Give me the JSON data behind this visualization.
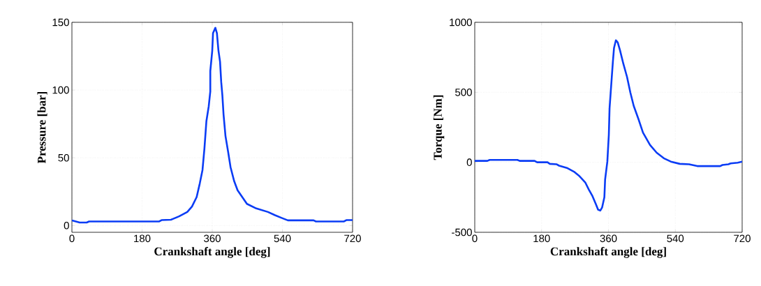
{
  "chart_data": [
    {
      "type": "line",
      "xlabel": "Crankshaft angle [deg]",
      "ylabel": "Pressure [bar]",
      "xlim": [
        0,
        720
      ],
      "ylim": [
        -5,
        150
      ],
      "xticks": [
        0,
        180,
        360,
        540,
        720
      ],
      "yticks": [
        0,
        50,
        100,
        150
      ],
      "grid": true,
      "line_style": "solid",
      "series": [
        {
          "color": "#0a3cf5",
          "x": [
            0,
            20,
            38,
            44,
            224,
            230,
            254,
            260,
            275,
            296,
            308,
            320,
            328,
            335,
            340,
            345,
            351,
            355,
            355,
            360,
            362,
            368,
            372,
            376,
            380,
            383,
            386,
            389,
            394,
            401,
            407,
            416,
            425,
            437,
            449,
            473,
            503,
            521,
            539,
            554,
            620,
            626,
            698,
            704,
            720
          ],
          "values": [
            3.8,
            2.2,
            2.2,
            3,
            3,
            4,
            4.3,
            5,
            6.8,
            10,
            14,
            21,
            31,
            41,
            57,
            77,
            88,
            99,
            114,
            129,
            142,
            146,
            142,
            129,
            121,
            106,
            96,
            82,
            66,
            54,
            43,
            33,
            26,
            21,
            16,
            12.6,
            10,
            7.6,
            5.5,
            3.8,
            3.8,
            3,
            3,
            4,
            4
          ]
        }
      ]
    },
    {
      "type": "line",
      "xlabel": "Crankshaft angle [deg]",
      "ylabel": "Torque [Nm]",
      "xlim": [
        0,
        720
      ],
      "ylim": [
        -500,
        1000
      ],
      "xticks": [
        0,
        180,
        360,
        540,
        720
      ],
      "yticks": [
        -500,
        0,
        500,
        1000
      ],
      "grid": true,
      "line_style": "solid",
      "series": [
        {
          "color": "#0a3cf5",
          "x": [
            0,
            34,
            40,
            115,
            121,
            161,
            168,
            196,
            202,
            220,
            227,
            248,
            267,
            282,
            298,
            307,
            317,
            326,
            332,
            338,
            343,
            349,
            351,
            357,
            361,
            363,
            366,
            369,
            372,
            375,
            380,
            385,
            391,
            400,
            410,
            419,
            428,
            441,
            453,
            472,
            490,
            509,
            528,
            552,
            577,
            599,
            661,
            667,
            683,
            689,
            708,
            720
          ],
          "values": [
            10,
            10,
            17,
            17,
            10,
            10,
            0,
            0,
            -11,
            -14,
            -24,
            -40,
            -67,
            -99,
            -146,
            -194,
            -242,
            -298,
            -338,
            -345,
            -322,
            -250,
            -123,
            5,
            196,
            387,
            498,
            610,
            721,
            817,
            872,
            856,
            801,
            705,
            610,
            498,
            403,
            307,
            212,
            124,
            68,
            29,
            5,
            -11,
            -14,
            -27,
            -27,
            -19,
            -14,
            -8,
            -3,
            5
          ]
        }
      ]
    }
  ]
}
